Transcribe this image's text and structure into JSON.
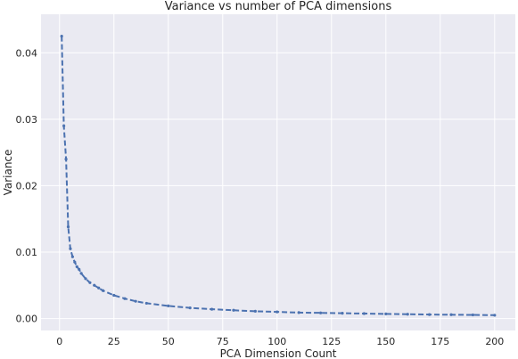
{
  "chart_data": {
    "type": "line",
    "title": "Variance vs number of PCA dimensions",
    "xlabel": "PCA Dimension Count",
    "ylabel": "Variance",
    "xlim": [
      -8.5,
      209.5
    ],
    "ylim": [
      -0.0018,
      0.0458
    ],
    "xticks": [
      0,
      25,
      50,
      75,
      100,
      125,
      150,
      175,
      200
    ],
    "yticks": [
      0.0,
      0.01,
      0.02,
      0.03,
      0.04
    ],
    "ytick_labels": [
      "0.00",
      "0.01",
      "0.02",
      "0.03",
      "0.04"
    ],
    "grid": true,
    "line_style": "dashed",
    "marker": "point",
    "series_color": "#4c72b0",
    "background_color": "#eaeaf2",
    "series": [
      {
        "x": [
          1,
          2,
          3,
          4,
          5,
          6,
          7,
          8,
          9,
          10,
          12,
          14,
          16,
          18,
          20,
          25,
          30,
          35,
          40,
          50,
          60,
          70,
          80,
          90,
          100,
          110,
          120,
          130,
          140,
          150,
          160,
          170,
          180,
          190,
          200
        ],
        "values": [
          0.0425,
          0.029,
          0.024,
          0.0138,
          0.0105,
          0.0093,
          0.0085,
          0.0078,
          0.0074,
          0.0068,
          0.006,
          0.0054,
          0.005,
          0.0046,
          0.0042,
          0.0035,
          0.003,
          0.0026,
          0.0023,
          0.0019,
          0.0016,
          0.0014,
          0.00125,
          0.0011,
          0.001,
          0.0009,
          0.00085,
          0.0008,
          0.00075,
          0.0007,
          0.00065,
          0.0006,
          0.00058,
          0.00055,
          0.0005
        ]
      }
    ]
  }
}
